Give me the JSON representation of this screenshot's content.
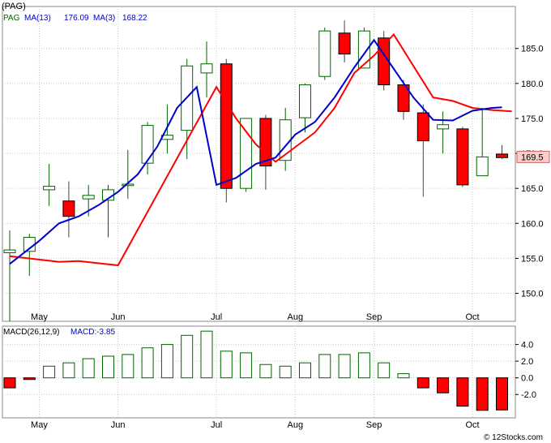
{
  "chart_data": [
    {
      "type": "candlestick",
      "ticker": "(PAG)",
      "legend": [
        {
          "label": "PAG",
          "color": "#006400"
        },
        {
          "label": "MA(13)",
          "value": "176.09",
          "color": "#0000cc"
        },
        {
          "label": "MA(3)",
          "value": "168.22",
          "color": "#0000cc"
        }
      ],
      "ylim": [
        146,
        191
      ],
      "y_ticks": [
        "150.0",
        "155.0",
        "160.0",
        "165.0",
        "170.0",
        "175.0",
        "180.0",
        "185.0"
      ],
      "x_month_labels": [
        {
          "label": "May",
          "at": 1.5
        },
        {
          "label": "Jun",
          "at": 5.5
        },
        {
          "label": "Jul",
          "at": 10.5
        },
        {
          "label": "Aug",
          "at": 14.5
        },
        {
          "label": "Sep",
          "at": 18.5
        },
        {
          "label": "Oct",
          "at": 23.5
        }
      ],
      "last_price": "169.5",
      "candles": [
        {
          "o": 155.8,
          "h": 159.0,
          "l": 146.0,
          "c": 156.2
        },
        {
          "o": 156.0,
          "h": 158.5,
          "l": 152.5,
          "c": 158.0
        },
        {
          "o": 164.8,
          "h": 168.5,
          "l": 162.5,
          "c": 165.3
        },
        {
          "o": 163.2,
          "h": 166.0,
          "l": 158.0,
          "c": 161.0
        },
        {
          "o": 163.5,
          "h": 165.5,
          "l": 161.0,
          "c": 164.0
        },
        {
          "o": 163.3,
          "h": 165.5,
          "l": 158.0,
          "c": 164.8
        },
        {
          "o": 165.4,
          "h": 170.5,
          "l": 163.5,
          "c": 165.6
        },
        {
          "o": 168.6,
          "h": 174.5,
          "l": 167.0,
          "c": 174.0
        },
        {
          "o": 172.0,
          "h": 177.0,
          "l": 170.0,
          "c": 172.6
        },
        {
          "o": 173.3,
          "h": 183.5,
          "l": 169.2,
          "c": 182.5
        },
        {
          "o": 181.5,
          "h": 186.0,
          "l": 178.0,
          "c": 182.8
        },
        {
          "o": 182.8,
          "h": 183.5,
          "l": 163.0,
          "c": 165.0
        },
        {
          "o": 165.0,
          "h": 175.0,
          "l": 164.5,
          "c": 175.0
        },
        {
          "o": 175.0,
          "h": 175.5,
          "l": 164.8,
          "c": 168.2
        },
        {
          "o": 169.0,
          "h": 176.5,
          "l": 167.5,
          "c": 174.8
        },
        {
          "o": 175.1,
          "h": 180.0,
          "l": 173.0,
          "c": 179.8
        },
        {
          "o": 181.0,
          "h": 188.0,
          "l": 180.5,
          "c": 187.5
        },
        {
          "o": 187.2,
          "h": 189.0,
          "l": 183.0,
          "c": 184.2
        },
        {
          "o": 182.2,
          "h": 188.0,
          "l": 182.2,
          "c": 187.5
        },
        {
          "o": 186.5,
          "h": 187.5,
          "l": 179.0,
          "c": 179.8
        },
        {
          "o": 179.8,
          "h": 180.5,
          "l": 174.8,
          "c": 176.0
        },
        {
          "o": 175.8,
          "h": 177.0,
          "l": 163.8,
          "c": 171.8
        },
        {
          "o": 173.5,
          "h": 176.0,
          "l": 170.0,
          "c": 174.1
        },
        {
          "o": 173.5,
          "h": 173.8,
          "l": 165.2,
          "c": 165.5
        },
        {
          "o": 166.8,
          "h": 176.5,
          "l": 166.8,
          "c": 169.5
        },
        {
          "o": 169.9,
          "h": 171.2,
          "l": 169.2,
          "c": 169.4
        }
      ],
      "ma_blue": [
        [
          0,
          154.2
        ],
        [
          1.5,
          157.5
        ],
        [
          2.5,
          160.0
        ],
        [
          3.5,
          161.0
        ],
        [
          4.5,
          162.6
        ],
        [
          5.5,
          164.5
        ],
        [
          6.5,
          167.0
        ],
        [
          7.5,
          171.0
        ],
        [
          8.5,
          176.5
        ],
        [
          9.5,
          179.5
        ],
        [
          10.5,
          165.5
        ],
        [
          11.5,
          166.5
        ],
        [
          12.5,
          168.5
        ],
        [
          13.5,
          169.4
        ],
        [
          14.5,
          172.7
        ],
        [
          15.5,
          174.5
        ],
        [
          16.5,
          178.0
        ],
        [
          17.5,
          182.3
        ],
        [
          18.5,
          186.2
        ],
        [
          20.5,
          178.0
        ],
        [
          21.5,
          174.8
        ],
        [
          22.5,
          174.7
        ],
        [
          23.5,
          176.1
        ],
        [
          24.5,
          176.5
        ],
        [
          25,
          176.6
        ]
      ],
      "ma_red": [
        [
          0,
          155.3
        ],
        [
          2.5,
          154.5
        ],
        [
          3.5,
          154.6
        ],
        [
          5.5,
          154.0
        ],
        [
          10.5,
          179.5
        ],
        [
          11.5,
          175.0
        ],
        [
          12.5,
          171.3
        ],
        [
          13.5,
          168.8
        ],
        [
          15.5,
          173.0
        ],
        [
          16.5,
          176.5
        ],
        [
          17.5,
          181.5
        ],
        [
          18.5,
          184.0
        ],
        [
          19.5,
          187.0
        ],
        [
          20.5,
          182.5
        ],
        [
          21.5,
          178.0
        ],
        [
          22.5,
          177.5
        ],
        [
          23.5,
          176.5
        ],
        [
          24.5,
          176.2
        ],
        [
          25.5,
          176.0
        ]
      ]
    },
    {
      "type": "bar",
      "legend": [
        {
          "label": "MACD(26,12,9)",
          "color": "#000000"
        },
        {
          "label": "MACD:-3.85",
          "color": "#0000cc"
        }
      ],
      "ylim": [
        -4.8,
        6.2
      ],
      "y_ticks": [
        "4.0",
        "2.0",
        "0.0",
        "-2.0"
      ],
      "x_month_labels": [
        {
          "label": "May",
          "at": 1.5
        },
        {
          "label": "Jun",
          "at": 5.5
        },
        {
          "label": "Jul",
          "at": 10.5
        },
        {
          "label": "Aug",
          "at": 14.5
        },
        {
          "label": "Sep",
          "at": 18.5
        },
        {
          "label": "Oct",
          "at": 23.5
        }
      ],
      "values": [
        -1.2,
        -0.2,
        1.4,
        1.8,
        2.3,
        2.6,
        2.8,
        3.6,
        4.0,
        5.1,
        5.6,
        3.2,
        3.0,
        1.6,
        1.4,
        1.8,
        2.8,
        2.8,
        3.0,
        1.8,
        0.5,
        -1.2,
        -1.8,
        -3.4,
        -3.9,
        -3.85
      ]
    }
  ],
  "footer": {
    "watermark": "© 12Stocks.com"
  }
}
